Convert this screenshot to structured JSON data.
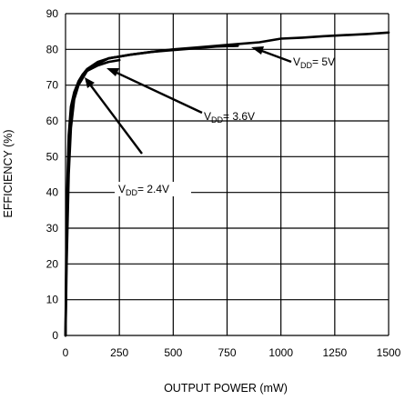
{
  "chart_data": {
    "type": "line",
    "title": "",
    "xlabel": "OUTPUT POWER (mW)",
    "ylabel": "EFFICIENCY (%)",
    "xlim": [
      0,
      1500
    ],
    "ylim": [
      0,
      90
    ],
    "xticks": [
      0,
      250,
      500,
      750,
      1000,
      1250,
      1500
    ],
    "yticks": [
      0,
      10,
      20,
      30,
      40,
      50,
      60,
      70,
      80,
      90
    ],
    "grid": true,
    "legend": "none",
    "series": [
      {
        "name": "VDD= 5V",
        "x": [
          5,
          15,
          25,
          40,
          60,
          80,
          100,
          150,
          200,
          300,
          400,
          500,
          600,
          700,
          800,
          900,
          1000,
          1100,
          1200,
          1300,
          1400,
          1500
        ],
        "y": [
          20,
          45,
          58,
          66,
          70,
          72,
          74,
          76,
          77.5,
          78.5,
          79.3,
          80,
          80.5,
          81,
          81.5,
          82,
          83,
          83.3,
          83.7,
          84,
          84.3,
          84.7
        ]
      },
      {
        "name": "VDD= 3.6V",
        "x": [
          5,
          15,
          25,
          40,
          60,
          80,
          100,
          150,
          200,
          300,
          400,
          500,
          600,
          700,
          800
        ],
        "y": [
          28,
          52,
          62,
          67,
          71,
          73,
          74.5,
          76.5,
          77.5,
          78.5,
          79.3,
          79.8,
          80.3,
          80.8,
          81
        ]
      },
      {
        "name": "VDD= 2.4V",
        "x": [
          5,
          15,
          25,
          40,
          60,
          80,
          100,
          150,
          200,
          250
        ],
        "y": [
          35,
          56,
          64,
          68,
          71,
          73,
          74,
          75.5,
          76.5,
          77
        ]
      }
    ],
    "annotations": [
      {
        "main": "V",
        "sub": "DD",
        "rest": "= 5V"
      },
      {
        "main": "V",
        "sub": "DD",
        "rest": "= 3.6V"
      },
      {
        "main": "V",
        "sub": "DD",
        "rest": "= 2.4V"
      }
    ]
  }
}
